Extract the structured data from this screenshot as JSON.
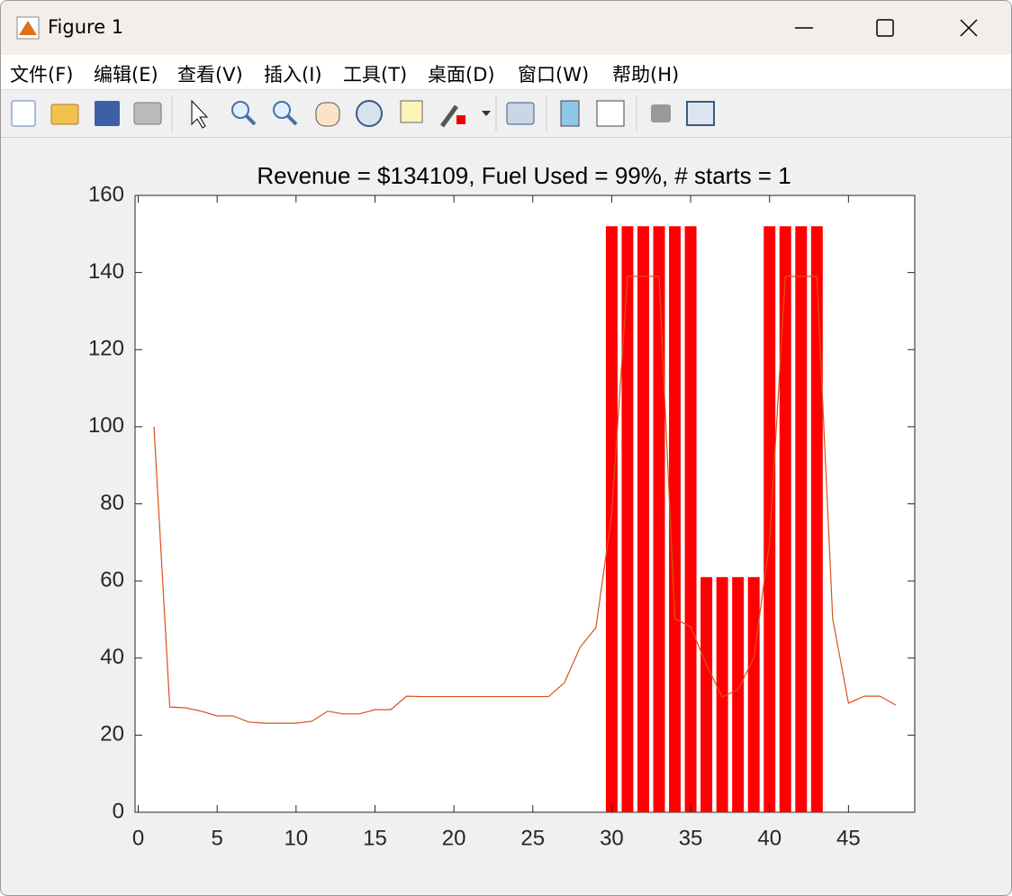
{
  "window": {
    "title": "Figure 1",
    "menu": [
      "文件(F)",
      "编辑(E)",
      "查看(V)",
      "插入(I)",
      "工具(T)",
      "桌面(D)",
      "窗口(W)",
      "帮助(H)"
    ]
  },
  "chart_data": {
    "type": "combo",
    "title": "Revenue = $134109, Fuel Used = 99%, # starts = 1",
    "xlim": [
      -0.2,
      49.2
    ],
    "ylim": [
      0,
      160
    ],
    "xticks": [
      0,
      5,
      10,
      15,
      20,
      25,
      30,
      35,
      40,
      45
    ],
    "yticks": [
      0,
      20,
      40,
      60,
      80,
      100,
      120,
      140,
      160
    ],
    "series": [
      {
        "type": "bar",
        "color": "#ff0000",
        "x": [
          30,
          31,
          32,
          33,
          34,
          35,
          36,
          37,
          38,
          39,
          40,
          41,
          42,
          43
        ],
        "values": [
          152,
          152,
          152,
          152,
          152,
          152,
          61,
          61,
          61,
          61,
          152,
          152,
          152,
          152
        ]
      },
      {
        "type": "line",
        "color": "#d95319",
        "x": [
          1,
          2,
          3,
          4,
          5,
          6,
          7,
          8,
          9,
          10,
          11,
          12,
          13,
          14,
          15,
          16,
          17,
          18,
          19,
          20,
          21,
          22,
          23,
          24,
          25,
          26,
          27,
          28,
          29,
          30,
          31,
          32,
          33,
          34,
          35,
          36,
          37,
          38,
          39,
          40,
          41,
          42,
          43,
          44,
          45,
          46,
          47,
          48
        ],
        "values": [
          100,
          27.3,
          27.1,
          26.2,
          25,
          25,
          23.4,
          23.1,
          23.1,
          23.1,
          23.6,
          26.2,
          25.5,
          25.5,
          26.6,
          26.6,
          30.1,
          30,
          30,
          30,
          30,
          30,
          30,
          30,
          30,
          30,
          33.6,
          42.8,
          47.9,
          77.3,
          139,
          139,
          139,
          50.2,
          48.1,
          38.3,
          29.9,
          31.8,
          40,
          70,
          139,
          139,
          139,
          50.2,
          28.3,
          30.1,
          30.1,
          27.8
        ]
      }
    ]
  }
}
